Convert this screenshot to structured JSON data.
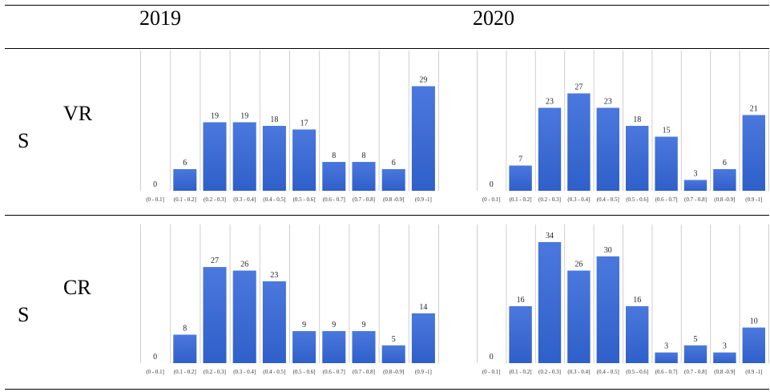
{
  "header": {
    "col_2019": "2019",
    "col_2020": "2020"
  },
  "rows": {
    "vr": {
      "label_top": "VR",
      "label_left": "S"
    },
    "cr": {
      "label_top": "CR",
      "label_left": "S"
    }
  },
  "colors": {
    "bar_top": "#4a78dd",
    "bar_bottom": "#2f5fc9",
    "divider": "#cfcfcf"
  },
  "chart_data": [
    {
      "type": "bar",
      "row": "VR",
      "column": "2019",
      "categories": [
        "(0 - 0.1]",
        "(0.1 - 0.2]",
        "(0.2 - 0.3]",
        "(0.3 - 0.4]",
        "(0.4 - 0.5]",
        "(0.5 - 0.6]",
        "(0.6 - 0.7]",
        "(0.7 - 0.8]",
        "(0.8 -0.9]",
        "(0.9 -1]"
      ],
      "values": [
        0,
        6,
        19,
        19,
        18,
        17,
        8,
        8,
        6,
        29
      ],
      "ylim": [
        0,
        34
      ],
      "grid": false
    },
    {
      "type": "bar",
      "row": "VR",
      "column": "2020",
      "categories": [
        "(0 - 0.1]",
        "(0.1 - 0.2]",
        "(0.2 - 0.3]",
        "(0.3 - 0.4]",
        "(0.4 - 0.5]",
        "(0.5 - 0.6]",
        "(0.6 - 0.7]",
        "(0.7 - 0.8]",
        "(0.8 -0.9]",
        "(0.9 -1]"
      ],
      "values": [
        0,
        7,
        23,
        27,
        23,
        18,
        15,
        3,
        6,
        21
      ],
      "ylim": [
        0,
        34
      ],
      "grid": false
    },
    {
      "type": "bar",
      "row": "CR",
      "column": "2019",
      "categories": [
        "(0 - 0.1]",
        "(0.1 - 0.2]",
        "(0.2 - 0.3]",
        "(0.3 - 0.4]",
        "(0.4 - 0.5]",
        "(0.5 - 0.6]",
        "(0.6 - 0.7]",
        "(0.7 - 0.8]",
        "(0.8 -0.9]",
        "(0.9 -1]"
      ],
      "values": [
        0,
        8,
        27,
        26,
        23,
        9,
        9,
        9,
        5,
        14
      ],
      "ylim": [
        0,
        34
      ],
      "grid": false
    },
    {
      "type": "bar",
      "row": "CR",
      "column": "2020",
      "categories": [
        "(0 - 0.1]",
        "(0.1 - 0.2]",
        "(0.2 - 0.3]",
        "(0.3 - 0.4]",
        "(0.4 - 0.5]",
        "(0.5 - 0.6]",
        "(0.6 - 0.7]",
        "(0.7 - 0.8]",
        "(0.8 -0.9]",
        "(0.9 -1]"
      ],
      "values": [
        0,
        16,
        34,
        26,
        30,
        16,
        3,
        5,
        3,
        10
      ],
      "ylim": [
        0,
        34
      ],
      "grid": false
    }
  ]
}
